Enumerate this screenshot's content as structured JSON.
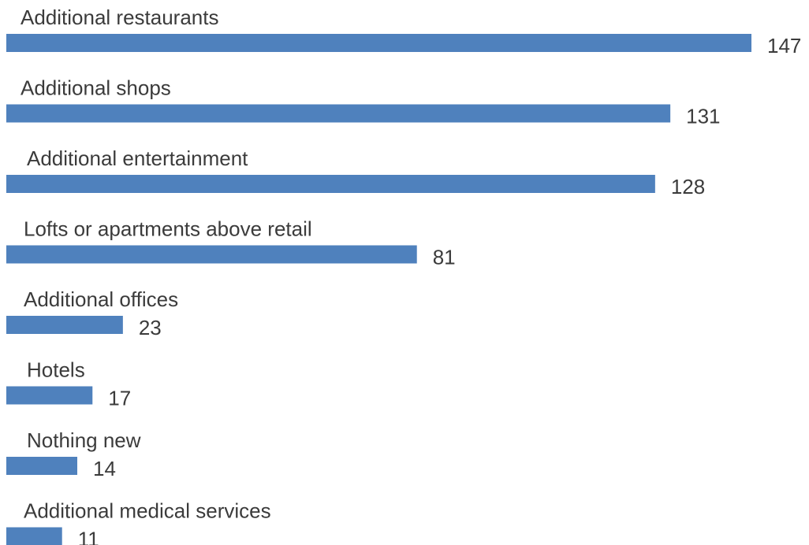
{
  "chart_data": {
    "type": "bar",
    "orientation": "horizontal",
    "categories": [
      "Additional restaurants",
      "Additional shops",
      "Additional entertainment",
      "Lofts or apartments above retail",
      "Additional offices",
      "Hotels",
      "Nothing new",
      "Additional medical services"
    ],
    "values": [
      147,
      131,
      128,
      81,
      23,
      17,
      14,
      11
    ],
    "xlim": [
      0,
      147
    ],
    "grid": false,
    "legend": "none",
    "colors": {
      "bar": "#4f81bd",
      "text": "#3b3b3b"
    }
  }
}
